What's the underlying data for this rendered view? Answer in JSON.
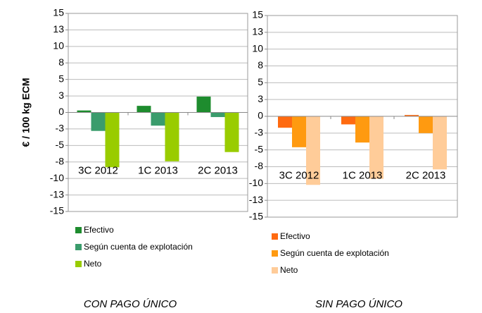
{
  "chart_data": [
    {
      "type": "bar",
      "ylabel": "€ / 100 kg ECM",
      "caption": "CON PAGO ÚNICO",
      "categories": [
        "3C 2012",
        "1C 2013",
        "2C 2013"
      ],
      "series": [
        {
          "name": "Efectivo",
          "color": "#1e8c2e",
          "values": [
            0.3,
            1.0,
            2.4
          ]
        },
        {
          "name": "Según cuenta de explotación",
          "color": "#3a9c6c",
          "values": [
            -2.8,
            -2.0,
            -0.7
          ]
        },
        {
          "name": "Neto",
          "color": "#99cc00",
          "values": [
            -8.3,
            -7.4,
            -6.0
          ]
        }
      ],
      "ylim": [
        -15,
        15
      ],
      "yticks": [
        15,
        {
          "value": 12.5,
          "label": "13"
        },
        10,
        {
          "value": 7.5,
          "label": "8"
        },
        5,
        {
          "value": 2.5,
          "label": "3"
        },
        0,
        {
          "value": -2.5,
          "label": "-3"
        },
        -5,
        {
          "value": -7.5,
          "label": "-8"
        },
        -10,
        {
          "value": -12.5,
          "label": "-13"
        },
        -15
      ],
      "grid": true
    },
    {
      "type": "bar",
      "caption": "SIN PAGO ÚNICO",
      "categories": [
        "3C 2012",
        "1C 2013",
        "2C 2013"
      ],
      "series": [
        {
          "name": "Efectivo",
          "color": "#ff6a10",
          "values": [
            -1.7,
            -1.2,
            0.2
          ]
        },
        {
          "name": "Según cuenta de explotación",
          "color": "#ff9a10",
          "values": [
            -4.6,
            -3.9,
            -2.5
          ]
        },
        {
          "name": "Neto",
          "color": "#ffcc99",
          "values": [
            -10.2,
            -9.3,
            -7.9
          ]
        }
      ],
      "ylim": [
        -15,
        15
      ],
      "yticks": [
        15,
        {
          "value": 12.5,
          "label": "13"
        },
        10,
        {
          "value": 7.5,
          "label": "8"
        },
        5,
        {
          "value": 2.5,
          "label": "3"
        },
        0,
        {
          "value": -2.5,
          "label": "-3"
        },
        -5,
        {
          "value": -7.5,
          "label": "-8"
        },
        -10,
        {
          "value": -12.5,
          "label": "-13"
        },
        -15
      ],
      "grid": true
    }
  ]
}
